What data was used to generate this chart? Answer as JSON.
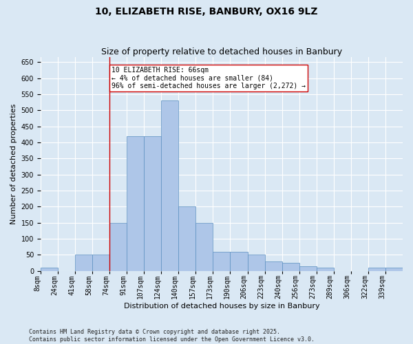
{
  "title_line1": "10, ELIZABETH RISE, BANBURY, OX16 9LZ",
  "title_line2": "Size of property relative to detached houses in Banbury",
  "xlabel": "Distribution of detached houses by size in Banbury",
  "ylabel": "Number of detached properties",
  "bin_labels": [
    "8sqm",
    "24sqm",
    "41sqm",
    "58sqm",
    "74sqm",
    "91sqm",
    "107sqm",
    "124sqm",
    "140sqm",
    "157sqm",
    "173sqm",
    "190sqm",
    "206sqm",
    "223sqm",
    "240sqm",
    "256sqm",
    "273sqm",
    "289sqm",
    "306sqm",
    "322sqm",
    "339sqm"
  ],
  "bar_heights": [
    10,
    0,
    50,
    50,
    150,
    420,
    420,
    530,
    200,
    150,
    60,
    60,
    50,
    30,
    25,
    15,
    10,
    0,
    0,
    10,
    10
  ],
  "bar_color": "#aec6e8",
  "bar_edgecolor": "#5a8fc0",
  "vline_index": 4,
  "vline_color": "#cc0000",
  "annotation_text": "10 ELIZABETH RISE: 66sqm\n← 4% of detached houses are smaller (84)\n96% of semi-detached houses are larger (2,272) →",
  "annotation_box_color": "#ffffff",
  "annotation_box_edgecolor": "#cc0000",
  "ylim": [
    0,
    665
  ],
  "yticks": [
    0,
    50,
    100,
    150,
    200,
    250,
    300,
    350,
    400,
    450,
    500,
    550,
    600,
    650
  ],
  "background_color": "#dae8f4",
  "grid_color": "#ffffff",
  "footer_text": "Contains HM Land Registry data © Crown copyright and database right 2025.\nContains public sector information licensed under the Open Government Licence v3.0.",
  "title_fontsize": 10,
  "subtitle_fontsize": 9,
  "axis_label_fontsize": 8,
  "tick_fontsize": 7,
  "annotation_fontsize": 7,
  "footer_fontsize": 6
}
